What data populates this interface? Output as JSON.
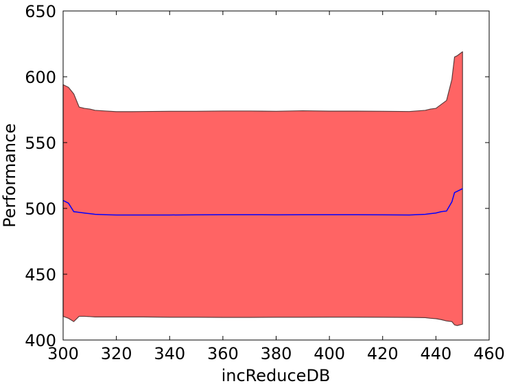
{
  "chart_data": {
    "type": "area",
    "title": "",
    "xlabel": "incReduceDB",
    "ylabel": "Performance",
    "xlim": [
      300,
      460
    ],
    "ylim": [
      400,
      650
    ],
    "xticks": [
      300,
      320,
      340,
      360,
      380,
      400,
      420,
      440,
      460
    ],
    "yticks": [
      400,
      450,
      500,
      550,
      600,
      650
    ],
    "grid": false,
    "legend": "none",
    "colors": {
      "band_fill": "#ff6464",
      "band_edge": "#5a3a3a",
      "mean_line": "#0000ff",
      "axes": "#000000"
    },
    "x": [
      300,
      302,
      304,
      306,
      308,
      310,
      312,
      316,
      320,
      326,
      330,
      340,
      350,
      360,
      370,
      380,
      390,
      400,
      410,
      420,
      430,
      436,
      438,
      440,
      442,
      444,
      446,
      447,
      448,
      450
    ],
    "series": [
      {
        "role": "upper",
        "values": [
          594,
          592,
          587,
          577,
          576,
          575.5,
          574.5,
          574,
          573.5,
          573.5,
          573.6,
          573.8,
          573.8,
          574,
          574,
          573.8,
          574.2,
          573.9,
          573.9,
          573.8,
          573.6,
          574.5,
          575.5,
          576,
          579,
          582,
          598,
          615,
          616,
          619
        ]
      },
      {
        "role": "mean",
        "values": [
          506,
          504,
          497.5,
          497,
          496.5,
          496,
          495.5,
          495.2,
          495,
          495,
          495,
          495,
          495.1,
          495.2,
          495.2,
          495.1,
          495.2,
          495.2,
          495.2,
          495.1,
          495,
          495.5,
          496,
          496.5,
          497.5,
          498,
          505,
          512,
          513,
          515
        ]
      },
      {
        "role": "lower",
        "values": [
          418,
          416.5,
          414,
          418,
          418,
          417.8,
          417.5,
          417.5,
          417.5,
          417.5,
          417.5,
          417.3,
          417.3,
          417.2,
          417.2,
          417.3,
          417.3,
          417.4,
          417.4,
          417.3,
          417.2,
          417,
          416.5,
          416.2,
          415.5,
          414.5,
          414,
          411.5,
          411,
          412
        ]
      }
    ]
  }
}
